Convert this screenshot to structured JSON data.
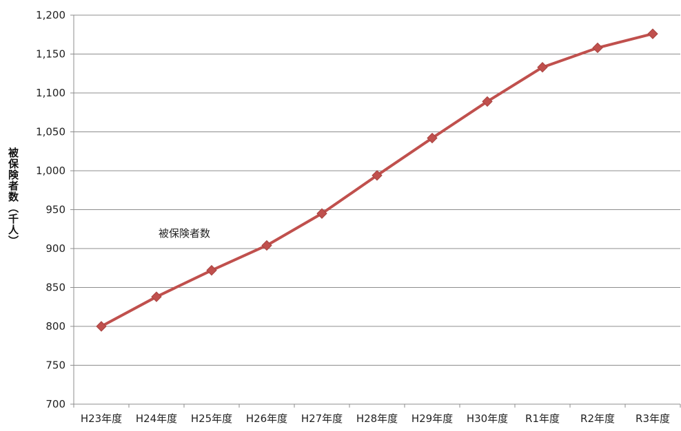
{
  "chart_data": {
    "type": "line",
    "ylabel": "被保険者数（千人）",
    "ylim": [
      700,
      1200
    ],
    "yticks": [
      "700",
      "750",
      "800",
      "850",
      "900",
      "950",
      "1,000",
      "1,050",
      "1,100",
      "1,150",
      "1,200"
    ],
    "categories": [
      "H23年度",
      "H24年度",
      "H25年度",
      "H26年度",
      "H27年度",
      "H28年度",
      "H29年度",
      "H30年度",
      "R1年度",
      "R2年度",
      "R3年度"
    ],
    "series": [
      {
        "name": "被保険者数",
        "color": "#c0504d",
        "values": [
          800,
          838,
          872,
          904,
          945,
          994,
          1042,
          1089,
          1133,
          1158,
          1176
        ]
      }
    ],
    "grid": true,
    "legend": "inside-left"
  }
}
